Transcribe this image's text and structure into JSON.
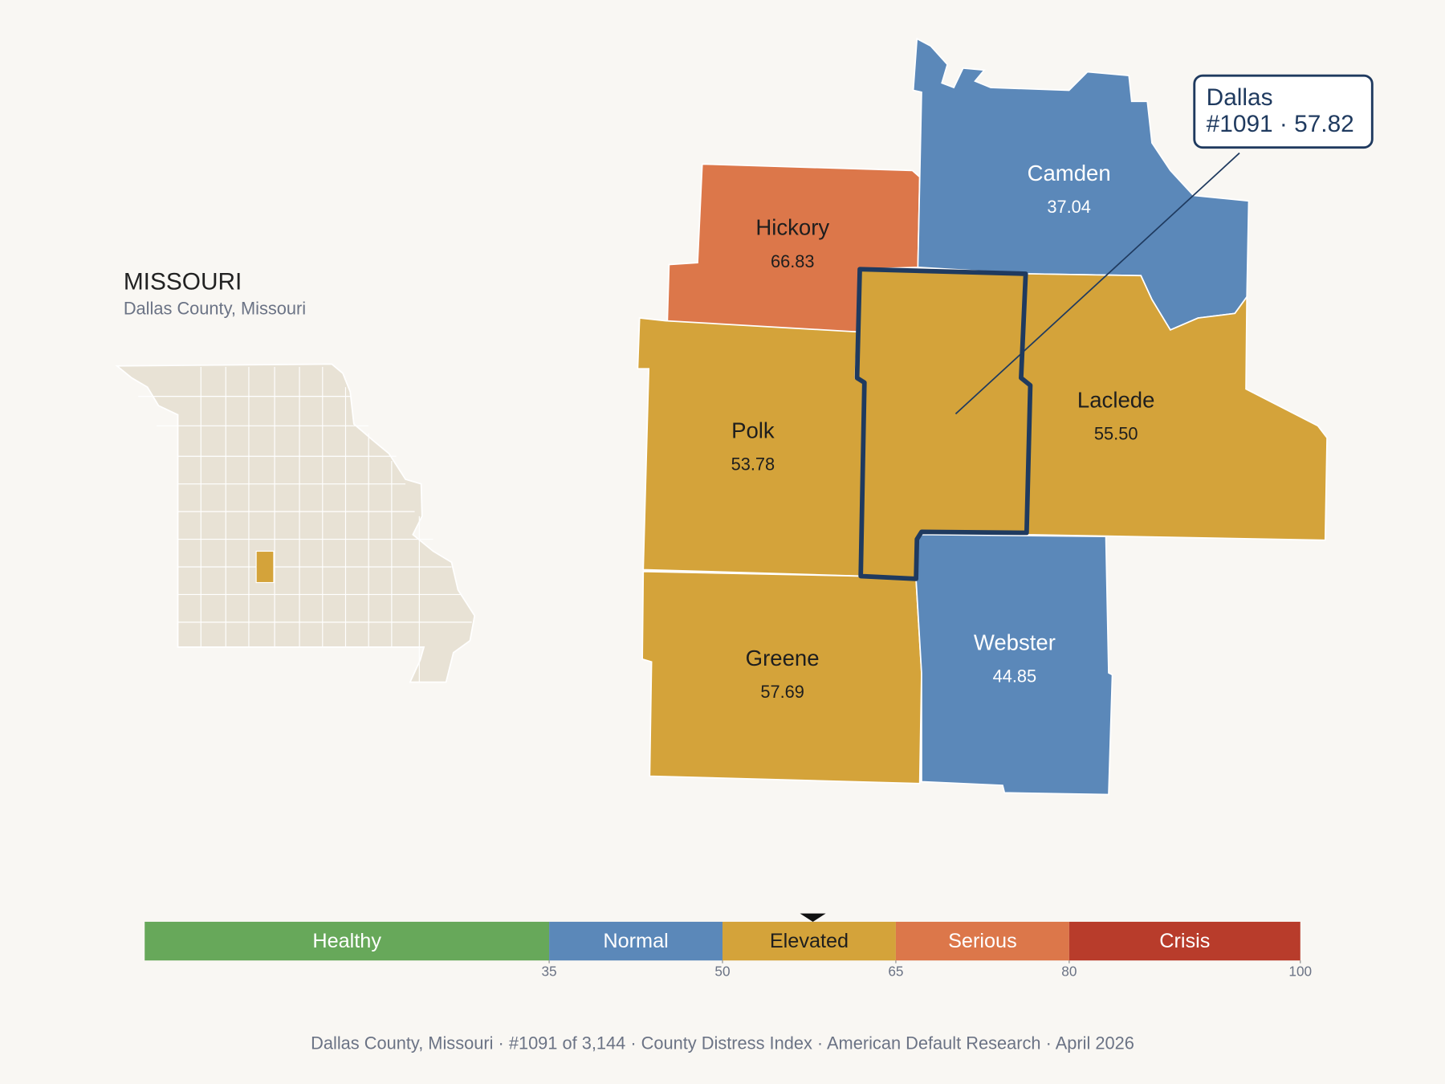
{
  "header": {
    "title": "MISSOURI",
    "subtitle": "Dallas County, Missouri"
  },
  "callout": {
    "name": "Dallas",
    "detail": "#1091 · 57.82",
    "value": 57.82
  },
  "counties": [
    {
      "name": "Hickory",
      "value": "66.83"
    },
    {
      "name": "Camden",
      "value": "37.04"
    },
    {
      "name": "Laclede",
      "value": "55.50"
    },
    {
      "name": "Polk",
      "value": "53.78"
    },
    {
      "name": "Greene",
      "value": "57.69"
    },
    {
      "name": "Webster",
      "value": "44.85"
    }
  ],
  "scale": {
    "range": [
      0,
      100
    ],
    "ticks": [
      35,
      50,
      65,
      80,
      100
    ],
    "bands": [
      {
        "label": "Healthy",
        "color": "#67a85a"
      },
      {
        "label": "Normal",
        "color": "#5b88b9"
      },
      {
        "label": "Elevated",
        "color": "#d4a33a"
      },
      {
        "label": "Serious",
        "color": "#dc774a"
      },
      {
        "label": "Crisis",
        "color": "#b83c2b"
      }
    ]
  },
  "footer": "Dallas County, Missouri  ·  #1091 of 3,144  ·  County Distress Index  ·  American Default Research  ·  April 2026"
}
